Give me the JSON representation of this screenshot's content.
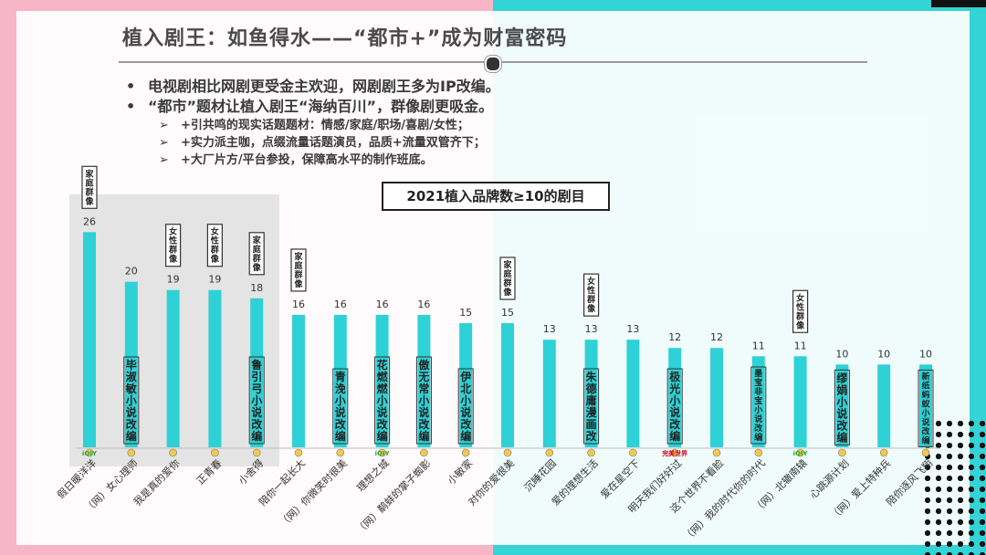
{
  "header": {
    "title": "植入剧王：如鱼得水——“都市+”成为财富密码"
  },
  "bullets": [
    {
      "text": "电视剧相比网剧更受金主欢迎，网剧剧王多为IP改编。"
    },
    {
      "text": "“都市”题材让植入剧王“海纳百川”，群像剧更吸金。"
    }
  ],
  "sub_bullets": [
    {
      "text": "+引共鸣的现实话题题材：情感/家庭/职场/喜剧/女性；"
    },
    {
      "text": "+实力派主咖，点缀流量话题演员，品质+流量双管齐下；"
    },
    {
      "text": "+大厂片方/平台参投，保障高水平的制作班底。"
    }
  ],
  "colors": {
    "bar": "#2ed1d5",
    "tag_border": "#333333",
    "pink": "#f6b6c8",
    "cyan": "#34d3d6"
  },
  "chart_data": {
    "type": "bar",
    "title": "2021植入品牌数≥10的剧目",
    "categories": [
      "假日暖洋洋",
      "（网）女心理师",
      "我是真的爱你",
      "正青春",
      "小舍得",
      "陪你一起长大",
      "（网）你微笑时很美",
      "理想之城",
      "（网）鹬蚌的掌子蜘影",
      "小敏家",
      "对你的爱很美",
      "沉睡花园",
      "爱的理想生活",
      "爱在星空下",
      "明天我们好好过",
      "这个世界不看脸",
      "（网）我的时代你的时代",
      "（网）北辙南辕",
      "心跳源计划",
      "（网）爱上特种兵",
      "陪你逐风飞翔"
    ],
    "values": [
      26,
      20,
      19,
      19,
      18,
      16,
      16,
      16,
      16,
      15,
      15,
      13,
      13,
      13,
      12,
      12,
      11,
      11,
      10,
      10,
      10
    ],
    "bar_tags": [
      "",
      "毕淑敏小说改编",
      "",
      "",
      "鲁引弓小说改编",
      "",
      "青浼小说改编",
      "花燃燃小说改编",
      "傲无常小说改编",
      "伊北小说改编",
      "",
      "",
      "朱德庸漫画改",
      "",
      "极光小说改编",
      "",
      "墨宝非宝小说改编",
      "",
      "缪娟小说改编",
      "",
      "新纸蚂蚁小说改编"
    ],
    "genre_tags": [
      {
        "index": 0,
        "text": "家庭群像"
      },
      {
        "index": 2,
        "text": "女性群像"
      },
      {
        "index": 3,
        "text": "女性群像"
      },
      {
        "index": 4,
        "text": "家庭群像"
      },
      {
        "index": 5,
        "text": "家庭群像"
      },
      {
        "index": 10,
        "text": "家庭群像"
      },
      {
        "index": 12,
        "text": "女性群像"
      },
      {
        "index": 17,
        "text": "女性群像"
      }
    ],
    "platform_logos": [
      {
        "index": 0,
        "text": "iQIY"
      },
      {
        "index": 14,
        "text": "完美世界"
      },
      {
        "index": 17,
        "text": "iQIY"
      },
      {
        "index": 7,
        "text": "iQIY"
      }
    ],
    "ylim": [
      0,
      30
    ]
  }
}
